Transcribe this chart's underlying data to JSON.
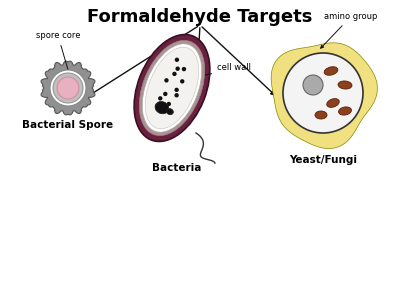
{
  "title": "Formaldehyde Targets",
  "title_fontsize": 13,
  "title_fontweight": "bold",
  "background_color": "#ffffff",
  "labels": {
    "bacterial_spore": "Bacterial Spore",
    "bacteria": "Bacteria",
    "yeast_fungi": "Yeast/Fungi",
    "spore_core": "spore core",
    "cell_wall": "cell wall",
    "amino_group": "amino group"
  },
  "colors": {
    "spore_outer": "#909090",
    "spore_white_ring": "#ffffff",
    "spore_grey_ring": "#c0c0c0",
    "spore_inner": "#e8b0c0",
    "bacteria_outer": "#6b2040",
    "bacteria_layer2": "#b09090",
    "bacteria_layer3": "#e8e4e0",
    "bacteria_inner": "#f4f2ee",
    "bacteria_dots": "#111111",
    "bacteria_nucleus": "#111111",
    "yeast_outer_fill": "#f0e080",
    "yeast_inner_fill": "#f4f4f4",
    "yeast_nucleus": "#aaaaaa",
    "yeast_organelles": "#8b4020",
    "arrow_color": "#111111",
    "label_font_color": "#000000"
  }
}
